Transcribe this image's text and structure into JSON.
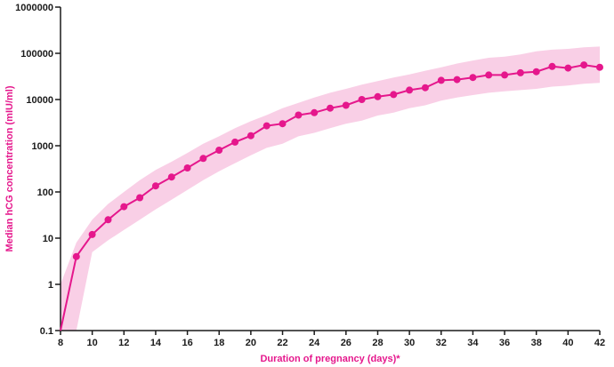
{
  "chart_data": {
    "type": "line",
    "title": "",
    "xlabel": "Duration of pregnancy (days)*",
    "ylabel": "Median hCG concentration (mIU/ml)",
    "xlim": [
      8,
      42
    ],
    "ylim": [
      0.1,
      1000000
    ],
    "y_scale": "log",
    "grid": false,
    "x_ticks": [
      8,
      10,
      12,
      14,
      16,
      18,
      20,
      22,
      24,
      26,
      28,
      30,
      32,
      34,
      36,
      38,
      40,
      42
    ],
    "y_ticks": [
      0.1,
      1,
      10,
      100,
      1000,
      10000,
      100000,
      1000000
    ],
    "y_tick_labels": [
      "0.1",
      "1",
      "10",
      "100",
      "1000",
      "10000",
      "100000",
      "1000000"
    ],
    "series": [
      {
        "x": [
          8,
          9,
          10,
          11,
          12,
          13,
          14,
          15,
          16,
          17,
          18,
          19,
          20,
          21,
          22,
          23,
          24,
          25,
          26,
          27,
          28,
          29,
          30,
          31,
          32,
          33,
          34,
          35,
          36,
          37,
          38,
          39,
          40,
          41,
          42
        ],
        "values": [
          0.1,
          4,
          12,
          25,
          48,
          75,
          135,
          210,
          330,
          530,
          800,
          1200,
          1650,
          2700,
          3000,
          4600,
          5200,
          6500,
          7500,
          10000,
          11500,
          12800,
          16000,
          18000,
          26000,
          27000,
          30000,
          34000,
          34000,
          38000,
          40000,
          52000,
          48000,
          56000,
          50000
        ],
        "lower": [
          0.1,
          0.1,
          5,
          9,
          15,
          25,
          42,
          68,
          110,
          180,
          280,
          420,
          620,
          900,
          1100,
          1600,
          1900,
          2400,
          3000,
          3500,
          4500,
          5200,
          6500,
          7500,
          9500,
          11000,
          12500,
          14000,
          15000,
          16000,
          17000,
          19000,
          20000,
          22000,
          23000
        ],
        "upper": [
          1,
          8,
          25,
          55,
          100,
          180,
          300,
          450,
          700,
          1100,
          1600,
          2400,
          3400,
          4600,
          6500,
          8500,
          11000,
          14000,
          17000,
          21000,
          25000,
          30000,
          35000,
          42000,
          50000,
          60000,
          70000,
          80000,
          85000,
          95000,
          110000,
          120000,
          125000,
          135000,
          140000
        ]
      }
    ],
    "colors": {
      "line": "#e5178c",
      "band": "#f9cfe6",
      "axis": "#1a1a1a",
      "axis_title": "#e5178c"
    }
  }
}
